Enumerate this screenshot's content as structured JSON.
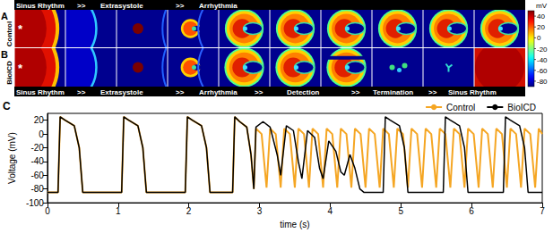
{
  "figure": {
    "panels": [
      {
        "letter": "A",
        "label": "Control",
        "stimulus_mark": "*",
        "stages": [
          "Sinus Rhythm",
          ">>",
          "Extrasystole",
          ">>",
          "Arrhythmia"
        ]
      },
      {
        "letter": "B",
        "label": "BioICD",
        "stimulus_mark": "*",
        "stages": [
          "Sinus Rhythm",
          ">>",
          "Extrasystole",
          ">>",
          "Arrhythmia",
          ">>",
          "Detection",
          ">>",
          "Termination",
          ">>",
          "Sinus Rhythm"
        ]
      }
    ],
    "colorbar": {
      "label": "mV",
      "range": [
        -90,
        50
      ],
      "ticks": [
        40,
        20,
        0,
        -20,
        -40,
        -60,
        -80
      ]
    },
    "chart_letter": "C"
  },
  "chart_data": {
    "type": "line",
    "x_label": "time (s)",
    "y_label": "Voltage (mV)",
    "xlim": [
      0,
      7
    ],
    "xticks": [
      0,
      1,
      2,
      3,
      4,
      5,
      6,
      7
    ],
    "ylim": [
      -100,
      30
    ],
    "yticks": [
      -100,
      -80,
      -60,
      -40,
      -20,
      0,
      20
    ],
    "grid": false,
    "legend": "upper right",
    "series": [
      {
        "name": "Control",
        "color": "#f5a623",
        "line_style": "solid",
        "x": [
          0,
          0.15,
          0.18,
          0.25,
          0.38,
          0.45,
          0.5,
          1.05,
          1.08,
          1.15,
          1.28,
          1.35,
          1.4,
          1.95,
          1.98,
          2.05,
          2.18,
          2.25,
          2.3,
          2.62,
          2.65,
          2.72,
          2.82,
          2.88,
          2.92,
          2.95,
          3.03,
          3.1,
          3.15,
          3.23,
          3.3,
          3.35,
          3.43,
          3.5,
          3.55,
          3.63,
          3.7,
          3.75,
          3.83,
          3.9,
          3.95,
          4.03,
          4.1,
          4.15,
          4.23,
          4.3,
          4.35,
          4.43,
          4.5,
          4.55,
          4.63,
          4.7,
          4.75,
          4.83,
          4.9,
          4.95,
          5.03,
          5.1,
          5.15,
          5.23,
          5.3,
          5.35,
          5.43,
          5.5,
          5.55,
          5.63,
          5.7,
          5.75,
          5.83,
          5.9,
          5.95,
          6.03,
          6.1,
          6.15,
          6.23,
          6.3,
          6.35,
          6.43,
          6.5,
          6.55,
          6.63,
          6.7,
          6.75,
          6.83,
          6.9,
          6.95,
          7
        ],
        "values": [
          -85,
          -85,
          25,
          20,
          12,
          -20,
          -85,
          -85,
          25,
          20,
          12,
          -20,
          -85,
          -85,
          25,
          20,
          12,
          -20,
          -85,
          -85,
          25,
          18,
          10,
          -30,
          -80,
          8,
          0,
          -78,
          8,
          0,
          -78,
          8,
          0,
          -78,
          8,
          0,
          -78,
          8,
          0,
          -78,
          8,
          0,
          -78,
          8,
          0,
          -78,
          8,
          0,
          -78,
          8,
          0,
          -78,
          8,
          0,
          -78,
          8,
          0,
          -78,
          8,
          0,
          -78,
          8,
          0,
          -78,
          8,
          0,
          -78,
          8,
          0,
          -78,
          8,
          0,
          -78,
          8,
          0,
          -78,
          8,
          0,
          -78,
          8,
          0,
          -78,
          8,
          0,
          -78,
          8,
          0
        ]
      },
      {
        "name": "BioICD",
        "color": "#000000",
        "line_style": "solid",
        "x": [
          0,
          0.15,
          0.18,
          0.25,
          0.38,
          0.45,
          0.5,
          1.05,
          1.08,
          1.15,
          1.28,
          1.35,
          1.4,
          1.95,
          1.98,
          2.05,
          2.18,
          2.25,
          2.3,
          2.62,
          2.65,
          2.72,
          2.82,
          2.88,
          2.92,
          2.95,
          3.05,
          3.15,
          3.25,
          3.3,
          3.38,
          3.48,
          3.55,
          3.6,
          3.68,
          3.78,
          3.85,
          3.9,
          3.98,
          4.08,
          4.15,
          4.2,
          4.28,
          4.35,
          4.42,
          4.48,
          4.75,
          4.78,
          4.85,
          4.98,
          5.05,
          5.1,
          5.6,
          5.63,
          5.7,
          5.83,
          5.9,
          5.95,
          6.45,
          6.48,
          6.55,
          6.68,
          6.75,
          6.8,
          7
        ],
        "values": [
          -85,
          -85,
          25,
          20,
          12,
          -20,
          -85,
          -85,
          25,
          20,
          12,
          -20,
          -85,
          -85,
          25,
          20,
          12,
          -20,
          -85,
          -85,
          25,
          18,
          10,
          -30,
          -80,
          10,
          18,
          10,
          -30,
          -60,
          12,
          5,
          -40,
          -65,
          5,
          -5,
          -50,
          -65,
          -10,
          -25,
          -55,
          -60,
          -30,
          -50,
          -80,
          -85,
          -85,
          25,
          20,
          12,
          -20,
          -85,
          -85,
          25,
          20,
          12,
          -20,
          -85,
          -85,
          25,
          20,
          12,
          -20,
          -85,
          -85
        ]
      }
    ]
  }
}
